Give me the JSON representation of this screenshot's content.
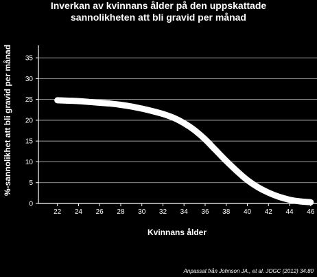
{
  "chart_data": {
    "type": "line",
    "title_line1": "Inverkan av kvinnans ålder på den uppskattade",
    "title_line2": "sannolikheten att bli gravid per månad",
    "xlabel": "Kvinnans ålder",
    "ylabel": "%-sannolikhet att bli gravid per månad",
    "source": "Anpassat från Johnson JA., et al. JOGC (2012) 34:80",
    "x_ticks": [
      "22",
      "24",
      "26",
      "28",
      "30",
      "32",
      "34",
      "36",
      "38",
      "40",
      "42",
      "44",
      "46"
    ],
    "y_ticks": [
      "0",
      "5",
      "10",
      "15",
      "20",
      "25",
      "30",
      "35"
    ],
    "xlim": [
      20.2,
      46.6
    ],
    "ylim": [
      0,
      37
    ],
    "grid": "horizontal",
    "series": [
      {
        "color": "#ffffff",
        "x": [
          22,
          23,
          24,
          25,
          26,
          27,
          28,
          29,
          30,
          31,
          32,
          33,
          34,
          35,
          36,
          37,
          38,
          39,
          40,
          41,
          42,
          43,
          44,
          45,
          46
        ],
        "y": [
          24.8,
          24.7,
          24.6,
          24.4,
          24.2,
          24.0,
          23.7,
          23.3,
          22.8,
          22.2,
          21.5,
          20.6,
          19.3,
          17.6,
          15.4,
          12.8,
          10.2,
          7.8,
          5.6,
          3.9,
          2.6,
          1.6,
          0.9,
          0.5,
          0.3
        ]
      }
    ]
  }
}
